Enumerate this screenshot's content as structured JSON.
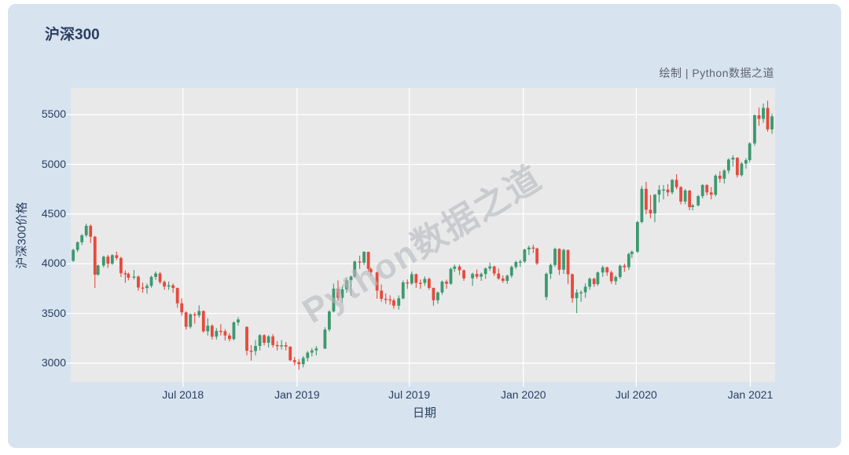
{
  "page": {
    "title": "沪深300",
    "credit": "绘制 | Python数据之道",
    "watermark": "Python数据之道"
  },
  "colors": {
    "card_bg": "#d8e3f0",
    "plot_bg": "#e9e9ea",
    "grid": "#ffffff",
    "text": "#2a3f5f",
    "credit_text": "#5d6470",
    "watermark": "#b4b8bd",
    "up": "#3D9970",
    "down": "#E64A3C"
  },
  "chart_data": {
    "type": "candlestick",
    "title": "沪深300",
    "series_name": "沪深300",
    "xlabel": "日期",
    "ylabel": "沪深300价格",
    "x_domain": [
      "2018-01-01",
      "2021-02-10"
    ],
    "ylim": [
      2810,
      5770
    ],
    "grid": true,
    "legend": "none",
    "yticks": [
      3000,
      3500,
      4000,
      4500,
      5000,
      5500
    ],
    "xticks": [
      {
        "date": "2018-07-01",
        "label": "Jul 2018"
      },
      {
        "date": "2019-01-01",
        "label": "Jan 2019"
      },
      {
        "date": "2019-07-01",
        "label": "Jul 2019"
      },
      {
        "date": "2020-01-01",
        "label": "Jan 2020"
      },
      {
        "date": "2020-07-01",
        "label": "Jul 2020"
      },
      {
        "date": "2021-01-01",
        "label": "Jan 2021"
      }
    ],
    "ohlc_columns": [
      "date",
      "open",
      "high",
      "low",
      "close"
    ],
    "ohlc": [
      [
        "2018-01-05",
        4030,
        4151,
        4018,
        4139
      ],
      [
        "2018-01-12",
        4139,
        4225,
        4118,
        4217
      ],
      [
        "2018-01-19",
        4217,
        4299,
        4189,
        4287
      ],
      [
        "2018-01-26",
        4287,
        4404,
        4268,
        4382
      ],
      [
        "2018-02-02",
        4382,
        4395,
        4208,
        4272
      ],
      [
        "2018-02-09",
        4272,
        4281,
        3757,
        3891
      ],
      [
        "2018-02-14",
        3891,
        3992,
        3878,
        3983
      ],
      [
        "2018-02-23",
        3983,
        4082,
        3962,
        4071
      ],
      [
        "2018-03-02",
        4071,
        4089,
        3958,
        4002
      ],
      [
        "2018-03-09",
        4002,
        4097,
        3988,
        4086
      ],
      [
        "2018-03-16",
        4086,
        4122,
        4038,
        4058
      ],
      [
        "2018-03-23",
        4058,
        4071,
        3868,
        3905
      ],
      [
        "2018-03-30",
        3905,
        3933,
        3808,
        3898
      ],
      [
        "2018-04-04",
        3898,
        3912,
        3833,
        3860
      ],
      [
        "2018-04-13",
        3860,
        3937,
        3841,
        3871
      ],
      [
        "2018-04-20",
        3871,
        3882,
        3728,
        3761
      ],
      [
        "2018-04-27",
        3761,
        3811,
        3708,
        3756
      ],
      [
        "2018-05-04",
        3756,
        3801,
        3698,
        3778
      ],
      [
        "2018-05-11",
        3778,
        3881,
        3759,
        3868
      ],
      [
        "2018-05-18",
        3868,
        3922,
        3838,
        3903
      ],
      [
        "2018-05-25",
        3903,
        3917,
        3798,
        3817
      ],
      [
        "2018-06-01",
        3817,
        3832,
        3738,
        3771
      ],
      [
        "2018-06-08",
        3771,
        3822,
        3738,
        3784
      ],
      [
        "2018-06-15",
        3784,
        3801,
        3708,
        3756
      ],
      [
        "2018-06-22",
        3756,
        3761,
        3558,
        3602
      ],
      [
        "2018-06-29",
        3602,
        3652,
        3478,
        3511
      ],
      [
        "2018-07-06",
        3511,
        3522,
        3338,
        3366
      ],
      [
        "2018-07-13",
        3366,
        3502,
        3348,
        3492
      ],
      [
        "2018-07-20",
        3492,
        3512,
        3398,
        3481
      ],
      [
        "2018-07-27",
        3481,
        3582,
        3458,
        3525
      ],
      [
        "2018-08-03",
        3525,
        3531,
        3308,
        3320
      ],
      [
        "2018-08-10",
        3320,
        3452,
        3278,
        3377
      ],
      [
        "2018-08-17",
        3377,
        3391,
        3238,
        3267
      ],
      [
        "2018-08-24",
        3267,
        3352,
        3238,
        3325
      ],
      [
        "2018-08-31",
        3325,
        3392,
        3278,
        3321
      ],
      [
        "2018-09-07",
        3321,
        3342,
        3228,
        3278
      ],
      [
        "2018-09-14",
        3278,
        3302,
        3218,
        3243
      ],
      [
        "2018-09-21",
        3243,
        3422,
        3228,
        3410
      ],
      [
        "2018-09-28",
        3410,
        3462,
        3378,
        3439
      ],
      [
        "2018-10-12",
        3365,
        3371,
        3078,
        3125
      ],
      [
        "2018-10-19",
        3125,
        3182,
        3025,
        3122
      ],
      [
        "2018-10-26",
        3122,
        3232,
        3078,
        3173
      ],
      [
        "2018-11-02",
        3173,
        3292,
        3128,
        3281
      ],
      [
        "2018-11-09",
        3281,
        3291,
        3178,
        3205
      ],
      [
        "2018-11-16",
        3205,
        3282,
        3158,
        3269
      ],
      [
        "2018-11-23",
        3269,
        3291,
        3158,
        3182
      ],
      [
        "2018-11-30",
        3182,
        3222,
        3128,
        3172
      ],
      [
        "2018-12-07",
        3172,
        3232,
        3138,
        3180
      ],
      [
        "2018-12-14",
        3180,
        3212,
        3128,
        3166
      ],
      [
        "2018-12-21",
        3166,
        3171,
        3018,
        3030
      ],
      [
        "2018-12-28",
        3030,
        3062,
        2978,
        3010
      ],
      [
        "2019-01-04",
        3010,
        3041,
        2935,
        2990
      ],
      [
        "2019-01-11",
        2990,
        3072,
        2958,
        3052
      ],
      [
        "2019-01-18",
        3052,
        3122,
        3018,
        3106
      ],
      [
        "2019-01-25",
        3106,
        3151,
        3068,
        3128
      ],
      [
        "2019-02-01",
        3128,
        3172,
        3078,
        3147
      ],
      [
        "2019-02-15",
        3147,
        3361,
        3142,
        3338
      ],
      [
        "2019-02-22",
        3338,
        3532,
        3318,
        3520
      ],
      [
        "2019-03-01",
        3520,
        3801,
        3508,
        3750
      ],
      [
        "2019-03-08",
        3750,
        3832,
        3628,
        3657
      ],
      [
        "2019-03-15",
        3657,
        3772,
        3608,
        3743
      ],
      [
        "2019-03-22",
        3743,
        3862,
        3708,
        3834
      ],
      [
        "2019-03-29",
        3834,
        3881,
        3678,
        3872
      ],
      [
        "2019-04-04",
        3872,
        4032,
        3858,
        4023
      ],
      [
        "2019-04-12",
        4023,
        4082,
        3948,
        4012
      ],
      [
        "2019-04-19",
        4012,
        4126,
        3988,
        4120
      ],
      [
        "2019-04-26",
        4120,
        4122,
        3918,
        3948
      ],
      [
        "2019-04-30",
        3948,
        3962,
        3878,
        3913
      ],
      [
        "2019-05-10",
        3913,
        3921,
        3648,
        3730
      ],
      [
        "2019-05-17",
        3730,
        3792,
        3618,
        3648
      ],
      [
        "2019-05-24",
        3648,
        3702,
        3598,
        3641
      ],
      [
        "2019-05-31",
        3641,
        3682,
        3588,
        3632
      ],
      [
        "2019-06-06",
        3632,
        3652,
        3548,
        3578
      ],
      [
        "2019-06-14",
        3578,
        3682,
        3538,
        3652
      ],
      [
        "2019-06-21",
        3652,
        3832,
        3642,
        3813
      ],
      [
        "2019-06-28",
        3813,
        3842,
        3748,
        3802
      ],
      [
        "2019-07-05",
        3802,
        3922,
        3788,
        3895
      ],
      [
        "2019-07-12",
        3895,
        3902,
        3758,
        3808
      ],
      [
        "2019-07-19",
        3808,
        3842,
        3748,
        3807
      ],
      [
        "2019-07-26",
        3807,
        3872,
        3778,
        3848
      ],
      [
        "2019-08-02",
        3848,
        3862,
        3738,
        3757
      ],
      [
        "2019-08-09",
        3757,
        3761,
        3578,
        3633
      ],
      [
        "2019-08-16",
        3633,
        3722,
        3598,
        3711
      ],
      [
        "2019-08-23",
        3711,
        3832,
        3688,
        3820
      ],
      [
        "2019-08-30",
        3820,
        3841,
        3748,
        3799
      ],
      [
        "2019-09-06",
        3799,
        3961,
        3788,
        3949
      ],
      [
        "2019-09-12",
        3949,
        3992,
        3918,
        3972
      ],
      [
        "2019-09-20",
        3972,
        3991,
        3888,
        3935
      ],
      [
        "2019-09-27",
        3935,
        3941,
        3828,
        3853
      ],
      [
        "2019-10-11",
        3853,
        3912,
        3778,
        3898
      ],
      [
        "2019-10-18",
        3898,
        3942,
        3848,
        3870
      ],
      [
        "2019-10-25",
        3870,
        3912,
        3828,
        3897
      ],
      [
        "2019-11-01",
        3897,
        3962,
        3848,
        3953
      ],
      [
        "2019-11-08",
        3953,
        4012,
        3928,
        3973
      ],
      [
        "2019-11-15",
        3973,
        3981,
        3878,
        3902
      ],
      [
        "2019-11-22",
        3902,
        3952,
        3838,
        3852
      ],
      [
        "2019-11-29",
        3852,
        3882,
        3808,
        3828
      ],
      [
        "2019-12-06",
        3828,
        3892,
        3798,
        3880
      ],
      [
        "2019-12-13",
        3880,
        3982,
        3858,
        3968
      ],
      [
        "2019-12-20",
        3968,
        4032,
        3948,
        4017
      ],
      [
        "2019-12-27",
        4017,
        4042,
        3968,
        4022
      ],
      [
        "2020-01-03",
        4022,
        4152,
        4008,
        4144
      ],
      [
        "2020-01-10",
        4144,
        4182,
        4088,
        4163
      ],
      [
        "2020-01-17",
        4163,
        4192,
        4108,
        4154
      ],
      [
        "2020-01-23",
        4154,
        4162,
        3988,
        4004
      ],
      [
        "2020-02-07",
        3666,
        3912,
        3635,
        3899
      ],
      [
        "2020-02-14",
        3899,
        4002,
        3848,
        3988
      ],
      [
        "2020-02-21",
        3988,
        4162,
        3968,
        4150
      ],
      [
        "2020-02-28",
        4150,
        4156,
        3888,
        3940
      ],
      [
        "2020-03-06",
        3940,
        4152,
        3898,
        4139
      ],
      [
        "2020-03-13",
        4139,
        4142,
        3798,
        3895
      ],
      [
        "2020-03-20",
        3895,
        3902,
        3608,
        3654
      ],
      [
        "2020-03-27",
        3654,
        3742,
        3503,
        3710
      ],
      [
        "2020-04-03",
        3710,
        3732,
        3618,
        3713
      ],
      [
        "2020-04-10",
        3713,
        3802,
        3658,
        3769
      ],
      [
        "2020-04-17",
        3769,
        3862,
        3738,
        3849
      ],
      [
        "2020-04-24",
        3849,
        3861,
        3768,
        3796
      ],
      [
        "2020-04-30",
        3796,
        3922,
        3778,
        3913
      ],
      [
        "2020-05-08",
        3913,
        3982,
        3868,
        3964
      ],
      [
        "2020-05-15",
        3964,
        3972,
        3878,
        3913
      ],
      [
        "2020-05-22",
        3913,
        3931,
        3798,
        3824
      ],
      [
        "2020-05-29",
        3824,
        3882,
        3788,
        3867
      ],
      [
        "2020-06-05",
        3867,
        3992,
        3848,
        3980
      ],
      [
        "2020-06-12",
        3980,
        4002,
        3918,
        3965
      ],
      [
        "2020-06-19",
        3965,
        4112,
        3938,
        4098
      ],
      [
        "2020-06-24",
        4098,
        4132,
        4058,
        4122
      ],
      [
        "2020-07-03",
        4122,
        4432,
        4108,
        4420
      ],
      [
        "2020-07-10",
        4420,
        4782,
        4408,
        4754
      ],
      [
        "2020-07-17",
        4754,
        4824,
        4498,
        4544
      ],
      [
        "2020-07-24",
        4544,
        4692,
        4458,
        4506
      ],
      [
        "2020-07-31",
        4506,
        4702,
        4418,
        4696
      ],
      [
        "2020-08-07",
        4696,
        4792,
        4618,
        4745
      ],
      [
        "2020-08-14",
        4745,
        4792,
        4648,
        4747
      ],
      [
        "2020-08-21",
        4747,
        4802,
        4678,
        4718
      ],
      [
        "2020-08-28",
        4718,
        4852,
        4698,
        4844
      ],
      [
        "2020-09-04",
        4844,
        4902,
        4748,
        4771
      ],
      [
        "2020-09-11",
        4771,
        4782,
        4598,
        4626
      ],
      [
        "2020-09-18",
        4626,
        4752,
        4598,
        4737
      ],
      [
        "2020-09-25",
        4737,
        4741,
        4538,
        4570
      ],
      [
        "2020-09-30",
        4570,
        4602,
        4538,
        4588
      ],
      [
        "2020-10-09",
        4588,
        4692,
        4578,
        4681
      ],
      [
        "2020-10-16",
        4681,
        4802,
        4658,
        4792
      ],
      [
        "2020-10-23",
        4792,
        4801,
        4688,
        4718
      ],
      [
        "2020-10-30",
        4718,
        4772,
        4648,
        4695
      ],
      [
        "2020-11-06",
        4695,
        4902,
        4678,
        4886
      ],
      [
        "2020-11-13",
        4886,
        4932,
        4818,
        4856
      ],
      [
        "2020-11-20",
        4856,
        4952,
        4808,
        4938
      ],
      [
        "2020-11-27",
        4938,
        5062,
        4908,
        5049
      ],
      [
        "2020-12-04",
        5049,
        5092,
        4978,
        5067
      ],
      [
        "2020-12-11",
        5067,
        5072,
        4868,
        4892
      ],
      [
        "2020-12-18",
        4892,
        5022,
        4878,
        5008
      ],
      [
        "2020-12-25",
        5008,
        5062,
        4958,
        5043
      ],
      [
        "2020-12-31",
        5043,
        5222,
        5018,
        5211
      ],
      [
        "2021-01-08",
        5211,
        5502,
        5188,
        5495
      ],
      [
        "2021-01-15",
        5495,
        5572,
        5388,
        5458
      ],
      [
        "2021-01-22",
        5458,
        5612,
        5418,
        5569
      ],
      [
        "2021-01-29",
        5569,
        5641,
        5328,
        5352
      ],
      [
        "2021-02-05",
        5352,
        5512,
        5308,
        5483
      ]
    ]
  }
}
